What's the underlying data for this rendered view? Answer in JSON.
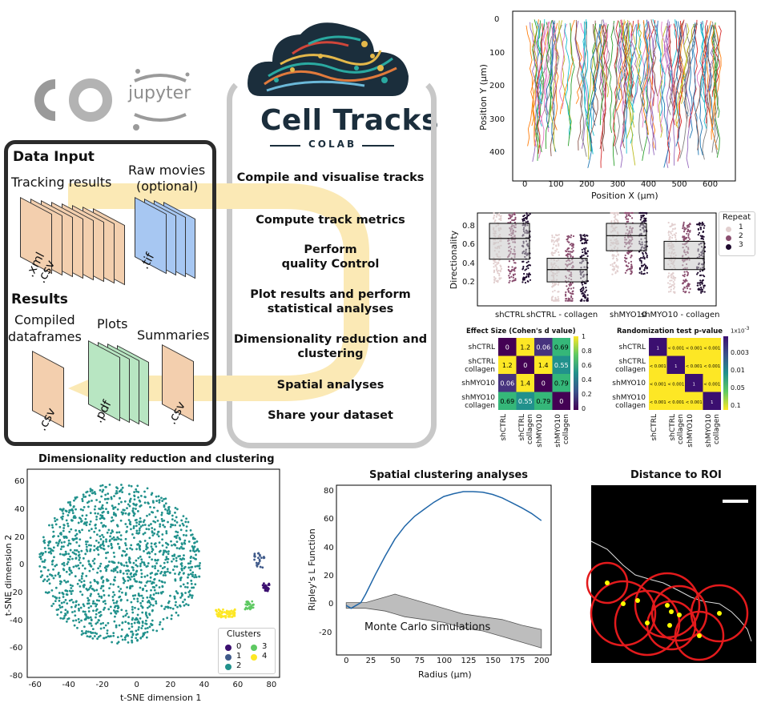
{
  "logos": {
    "colab_text": "CO",
    "jupyter_text": "jupyter",
    "cell_tracks_title": "Cell Tracks",
    "cell_tracks_subtitle": "COLAB"
  },
  "data_input_panel": {
    "heading": "Data Input",
    "tracking_label": "Tracking results",
    "tracking_ext": ".xml\n.csv",
    "tracking_ext_xml": ".xml",
    "tracking_ext_csv": ".csv",
    "raw_label_1": "Raw movies",
    "raw_label_2": "(optional)",
    "raw_ext": ".tif"
  },
  "results_panel": {
    "heading": "Results",
    "compiled_label_1": "Compiled",
    "compiled_label_2": "dataframes",
    "compiled_ext": ".csv",
    "plots_label": "Plots",
    "plots_ext": ".pdf",
    "summaries_label": "Summaries",
    "summaries_ext": ".csv"
  },
  "workflow": {
    "steps": [
      "Compile and visualise tracks",
      "Compute track metrics",
      "Perform quality Control",
      "Plot results and perform statistical analyses",
      "Dimensionality reduction and clustering",
      "Spatial analyses",
      "Share your dataset"
    ]
  },
  "tracks_plot": {
    "xlabel": "Position X (μm)",
    "ylabel": "Position Y (μm)",
    "xticks": [
      "0",
      "100",
      "200",
      "300",
      "400",
      "500",
      "600"
    ],
    "yticks": [
      "0",
      "100",
      "200",
      "300",
      "400"
    ]
  },
  "directionality_plot": {
    "ylabel": "Directionality",
    "yticks": [
      "0.8",
      "0.6",
      "0.4",
      "0.2"
    ],
    "categories": [
      "shCTRL",
      "shCTRL - collagen",
      "shMYO10",
      "shMYO10 - collagen"
    ],
    "legend_title": "Repeat",
    "legend_items": [
      "1",
      "2",
      "3"
    ]
  },
  "effect_size": {
    "title": "Effect Size (Cohen's d value)",
    "row_labels": [
      "shCTRL",
      "shCTRL collagen",
      "shMYO10",
      "shMYO10 collagen"
    ],
    "row_labels_line1": [
      "shCTRL",
      "shCTRL",
      "shMYO10",
      "shMYO10"
    ],
    "row_labels_line2": [
      "",
      "collagen",
      "",
      "collagen"
    ],
    "col_labels_line1": [
      "shCTRL",
      "shCTRL",
      "shMYO10",
      "shMYO10"
    ],
    "col_labels_line2": [
      "",
      "collagen",
      "",
      "collagen"
    ],
    "values": [
      [
        "0",
        "1.2",
        "0.06",
        "0.69"
      ],
      [
        "1.2",
        "0",
        "1.4",
        "0.55"
      ],
      [
        "0.06",
        "1.4",
        "0",
        "0.79"
      ],
      [
        "0.69",
        "0.55",
        "0.79",
        "0"
      ]
    ],
    "colorbar_ticks": [
      "1",
      "0.8",
      "0.6",
      "0.4",
      "0.2",
      "0"
    ]
  },
  "randomization": {
    "title": "Randomization test p-value",
    "values": [
      [
        "1",
        "< 0.001",
        "< 0.001",
        "< 0.001"
      ],
      [
        "< 0.001",
        "1",
        "< 0.001",
        "< 0.001"
      ],
      [
        "< 0.001",
        "< 0.001",
        "1",
        "< 0.001"
      ],
      [
        "< 0.001",
        "< 0.001",
        "< 0.001",
        "1"
      ]
    ],
    "colorbar_exponent": "1x10",
    "colorbar_exponent_power": "-3",
    "colorbar_ticks": [
      "0.003",
      "0.01",
      "0.05",
      "0.1"
    ]
  },
  "tsne": {
    "title": "Dimensionality reduction and clustering",
    "xlabel": "t-SNE dimension 1",
    "ylabel": "t-SNE dimension 2",
    "xticks": [
      "-60",
      "-40",
      "-20",
      "0",
      "20",
      "40",
      "60",
      "80"
    ],
    "yticks": [
      "60",
      "40",
      "20",
      "0",
      "-20",
      "-40",
      "-60",
      "-80"
    ],
    "legend_title": "Clusters",
    "legend_items": [
      "0",
      "1",
      "2",
      "3",
      "4"
    ],
    "colors": [
      "#3b0f70",
      "#3f5a8a",
      "#21918c",
      "#5ec962",
      "#fde725"
    ]
  },
  "ripley": {
    "title": "Spatial clustering analyses",
    "xlabel": "Radius (μm)",
    "ylabel": "Ripley's L Function",
    "xticks": [
      "0",
      "25",
      "50",
      "75",
      "100",
      "125",
      "150",
      "175",
      "200"
    ],
    "yticks": [
      "80",
      "60",
      "40",
      "20",
      "0",
      "-20"
    ],
    "annotation": "Monte Carlo simulations"
  },
  "chart_data": [
    {
      "type": "line",
      "title": "Spatial clustering analyses",
      "xlabel": "Radius (μm)",
      "ylabel": "Ripley's L Function",
      "xlim": [
        0,
        200
      ],
      "ylim": [
        -35,
        85
      ],
      "series": [
        {
          "x": [
            0,
            5,
            10,
            15,
            20,
            30,
            40,
            50,
            60,
            70,
            80,
            90,
            100,
            110,
            120,
            130,
            140,
            150,
            160,
            170,
            180,
            190,
            200
          ],
          "values": [
            0,
            -2,
            0,
            2,
            8,
            22,
            35,
            47,
            56,
            63,
            68,
            73,
            77,
            79,
            80.5,
            80.5,
            80,
            78.5,
            76,
            72.5,
            69,
            65,
            60
          ]
        }
      ],
      "envelope": {
        "x": [
          0,
          20,
          40,
          50,
          60,
          80,
          100,
          120,
          140,
          160,
          180,
          200
        ],
        "upper": [
          2,
          2,
          6,
          8,
          6,
          2,
          -2,
          -6,
          -8,
          -10,
          -14,
          -17
        ],
        "lower": [
          -2,
          -2,
          -4,
          -6,
          -8,
          -10,
          -12,
          -16,
          -18,
          -22,
          -26,
          -30
        ]
      }
    },
    {
      "type": "heatmap",
      "title": "Effect Size (Cohen's d value)",
      "categories": [
        "shCTRL",
        "shCTRL collagen",
        "shMYO10",
        "shMYO10 collagen"
      ],
      "values": [
        [
          0,
          1.2,
          0.06,
          0.69
        ],
        [
          1.2,
          0,
          1.4,
          0.55
        ],
        [
          0.06,
          1.4,
          0,
          0.79
        ],
        [
          0.69,
          0.55,
          0.79,
          0
        ]
      ]
    }
  ],
  "distance_roi": {
    "title": "Distance to ROI"
  },
  "colors": {
    "input_file": "#f3cfae",
    "tif_file": "#a7c7f2",
    "pdf_file": "#b8e6c2",
    "arrow": "#fbe9b5",
    "panel_border": "#2b2b2b",
    "workflow_border": "#c8c8c8",
    "ripley_line": "#2066a8"
  }
}
